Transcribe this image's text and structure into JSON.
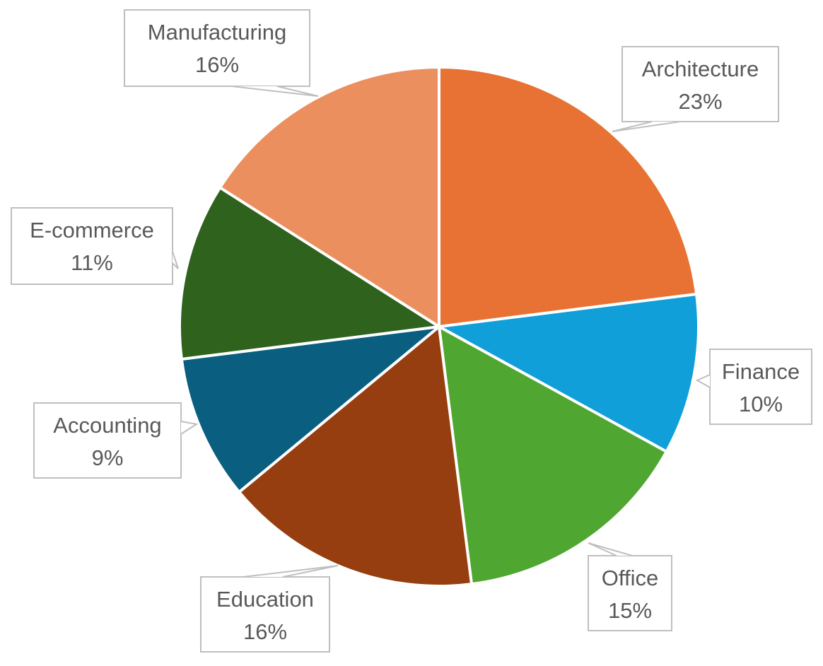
{
  "chart_data": {
    "type": "pie",
    "title": "",
    "start_angle_deg": 0,
    "direction": "clockwise",
    "slices": [
      {
        "label": "Architecture",
        "value": 23,
        "value_label": "23%",
        "color": "#E87233"
      },
      {
        "label": "Finance",
        "value": 10,
        "value_label": "10%",
        "color": "#109FD8"
      },
      {
        "label": "Office",
        "value": 15,
        "value_label": "15%",
        "color": "#4FA731"
      },
      {
        "label": "Education",
        "value": 16,
        "value_label": "16%",
        "color": "#963E10"
      },
      {
        "label": "Accounting",
        "value": 9,
        "value_label": "9%",
        "color": "#0A5E80"
      },
      {
        "label": "E-commerce",
        "value": 11,
        "value_label": "11%",
        "color": "#2E621D"
      },
      {
        "label": "Manufacturing",
        "value": 16,
        "value_label": "16%",
        "color": "#EC8F5E"
      }
    ],
    "legend": "none",
    "data_labels": "callouts"
  }
}
